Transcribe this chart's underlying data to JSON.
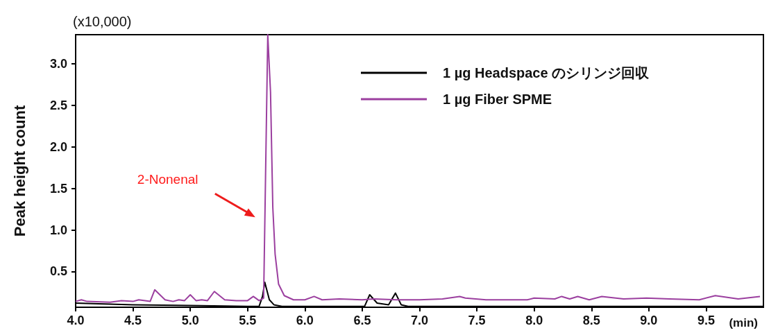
{
  "chart_data": {
    "type": "line",
    "xlabel": "(min)",
    "ylabel": "Peak height count",
    "annotations": [
      "(x10,000)",
      "2-Nonenal"
    ],
    "xlim": [
      4.0,
      10.0
    ],
    "ylim": [
      0.07,
      3.35
    ],
    "xticks": [
      {
        "value": 4.0,
        "label": "4.0"
      },
      {
        "value": 4.5,
        "label": "4.5"
      },
      {
        "value": 5.0,
        "label": "5.0"
      },
      {
        "value": 5.5,
        "label": "5.5"
      },
      {
        "value": 6.0,
        "label": "6.0"
      },
      {
        "value": 6.5,
        "label": "6.5"
      },
      {
        "value": 7.0,
        "label": "7.0"
      },
      {
        "value": 7.5,
        "label": "7.5"
      },
      {
        "value": 8.0,
        "label": "8.0"
      },
      {
        "value": 8.5,
        "label": "8.5"
      },
      {
        "value": 9.0,
        "label": "9.0"
      },
      {
        "value": 9.5,
        "label": "9.5"
      }
    ],
    "yticks": [
      0.5,
      {
        "value": 1.0,
        "label": "1.0"
      },
      1.5,
      {
        "value": 2.0,
        "label": "2.0"
      },
      2.5,
      {
        "value": 3.0,
        "label": "3.0"
      }
    ],
    "grid": false,
    "legend": "top right",
    "marker": "none",
    "line_style": "solid",
    "series": [
      {
        "name": "1 µg Headspace のシリンジ回収",
        "color": "#000000",
        "x": [
          4.0,
          4.5,
          5.0,
          5.5,
          5.6,
          5.63,
          5.65,
          5.69,
          5.73,
          5.8,
          6.0,
          6.5,
          6.52,
          6.565,
          6.63,
          6.73,
          6.79,
          6.84,
          6.9,
          7.0,
          8.0,
          9.0,
          10.0
        ],
        "values": [
          0.12,
          0.1,
          0.09,
          0.08,
          0.08,
          0.2,
          0.37,
          0.16,
          0.1,
          0.08,
          0.08,
          0.08,
          0.08,
          0.22,
          0.12,
          0.1,
          0.24,
          0.1,
          0.08,
          0.08,
          0.08,
          0.08,
          0.08
        ]
      },
      {
        "name": "1 µg  Fiber SPME",
        "color": "#9b3f9f",
        "x": [
          4.0,
          4.05,
          4.1,
          4.3,
          4.4,
          4.5,
          4.55,
          4.65,
          4.69,
          4.78,
          4.85,
          4.9,
          4.95,
          5.0,
          5.05,
          5.1,
          5.15,
          5.21,
          5.3,
          5.4,
          5.5,
          5.55,
          5.6,
          5.64,
          5.655,
          5.676,
          5.7,
          5.72,
          5.74,
          5.77,
          5.82,
          5.9,
          6.0,
          6.08,
          6.15,
          6.3,
          6.5,
          6.6,
          6.8,
          7.0,
          7.2,
          7.35,
          7.4,
          7.58,
          7.94,
          8.0,
          8.18,
          8.24,
          8.31,
          8.38,
          8.48,
          8.59,
          8.78,
          8.98,
          9.18,
          9.44,
          9.58,
          9.78,
          9.97
        ],
        "values": [
          0.14,
          0.16,
          0.14,
          0.13,
          0.15,
          0.14,
          0.16,
          0.14,
          0.28,
          0.16,
          0.14,
          0.16,
          0.15,
          0.22,
          0.15,
          0.16,
          0.15,
          0.26,
          0.16,
          0.15,
          0.15,
          0.2,
          0.15,
          0.18,
          1.5,
          3.35,
          2.66,
          1.27,
          0.71,
          0.35,
          0.21,
          0.16,
          0.16,
          0.2,
          0.16,
          0.17,
          0.16,
          0.17,
          0.16,
          0.16,
          0.17,
          0.2,
          0.18,
          0.16,
          0.16,
          0.18,
          0.17,
          0.2,
          0.17,
          0.2,
          0.16,
          0.2,
          0.17,
          0.18,
          0.17,
          0.16,
          0.21,
          0.17,
          0.2
        ]
      }
    ]
  }
}
